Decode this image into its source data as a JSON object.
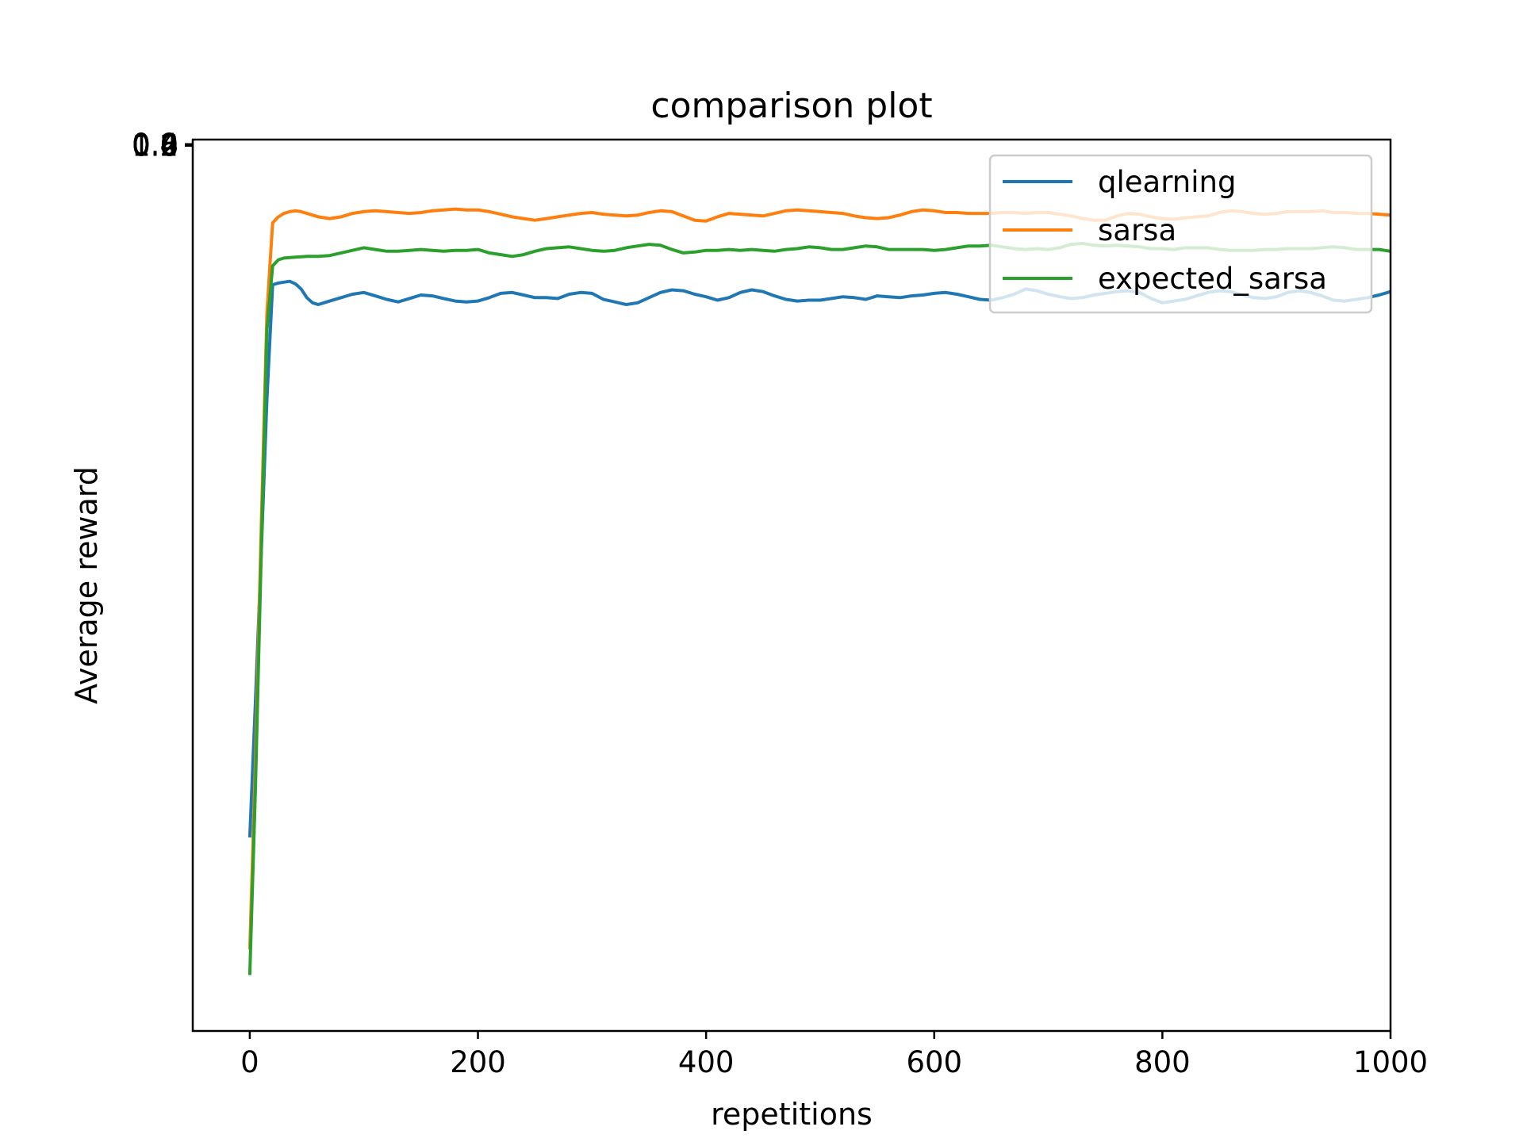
{
  "chart_data": {
    "type": "line",
    "title": "comparison plot",
    "xlabel": "repetitions",
    "ylabel": "Average reward",
    "xlim": [
      -50,
      1000
    ],
    "x_ticks": [
      0,
      200,
      400,
      600,
      800,
      1000
    ],
    "y_overlapping_tick_labels": [
      "0.0",
      "0.2",
      "0.4",
      "0.6",
      "0.8",
      "1.0"
    ],
    "ylim_px_note": "",
    "grid": false,
    "legend_position": "top-right",
    "series": [
      {
        "name": "qlearning",
        "color": "#1f77b4",
        "x": [
          0,
          5,
          10,
          15,
          20,
          25,
          30,
          35,
          40,
          45,
          50,
          55,
          60,
          65,
          70,
          80,
          90,
          100,
          110,
          120,
          130,
          140,
          150,
          160,
          170,
          180,
          190,
          200,
          210,
          220,
          230,
          240,
          250,
          260,
          270,
          280,
          290,
          300,
          310,
          320,
          330,
          340,
          350,
          360,
          370,
          380,
          390,
          400,
          410,
          420,
          430,
          440,
          450,
          460,
          470,
          480,
          490,
          500,
          510,
          520,
          530,
          540,
          550,
          560,
          570,
          580,
          590,
          600,
          610,
          620,
          630,
          640,
          650,
          660,
          670,
          680,
          690,
          700,
          710,
          720,
          730,
          740,
          750,
          760,
          770,
          780,
          790,
          800,
          810,
          820,
          830,
          840,
          850,
          860,
          870,
          880,
          890,
          900,
          910,
          920,
          930,
          940,
          950,
          960,
          970,
          980,
          990,
          1000
        ],
        "values": [
          0.19,
          0.35,
          0.52,
          0.7,
          0.833,
          0.835,
          0.836,
          0.837,
          0.834,
          0.828,
          0.818,
          0.812,
          0.81,
          0.812,
          0.814,
          0.818,
          0.822,
          0.824,
          0.82,
          0.816,
          0.813,
          0.817,
          0.821,
          0.82,
          0.817,
          0.814,
          0.813,
          0.814,
          0.818,
          0.823,
          0.824,
          0.821,
          0.818,
          0.818,
          0.817,
          0.822,
          0.824,
          0.823,
          0.816,
          0.813,
          0.81,
          0.812,
          0.818,
          0.824,
          0.827,
          0.826,
          0.822,
          0.819,
          0.815,
          0.818,
          0.824,
          0.827,
          0.825,
          0.82,
          0.816,
          0.814,
          0.815,
          0.815,
          0.817,
          0.819,
          0.818,
          0.816,
          0.82,
          0.819,
          0.818,
          0.82,
          0.821,
          0.823,
          0.824,
          0.822,
          0.819,
          0.816,
          0.815,
          0.818,
          0.822,
          0.828,
          0.826,
          0.822,
          0.819,
          0.817,
          0.818,
          0.821,
          0.823,
          0.825,
          0.826,
          0.824,
          0.817,
          0.812,
          0.814,
          0.816,
          0.82,
          0.824,
          0.826,
          0.825,
          0.821,
          0.818,
          0.817,
          0.819,
          0.824,
          0.826,
          0.824,
          0.82,
          0.815,
          0.814,
          0.816,
          0.818,
          0.821,
          0.825
        ]
      },
      {
        "name": "sarsa",
        "color": "#ff7f0e",
        "x": [
          0,
          5,
          10,
          15,
          20,
          25,
          30,
          35,
          40,
          45,
          50,
          55,
          60,
          70,
          80,
          90,
          100,
          110,
          120,
          130,
          140,
          150,
          160,
          170,
          180,
          190,
          200,
          210,
          220,
          230,
          240,
          250,
          260,
          270,
          280,
          290,
          300,
          310,
          320,
          330,
          340,
          350,
          360,
          370,
          380,
          390,
          400,
          410,
          420,
          430,
          440,
          450,
          460,
          470,
          480,
          490,
          500,
          510,
          520,
          530,
          540,
          550,
          560,
          570,
          580,
          590,
          600,
          610,
          620,
          630,
          640,
          650,
          660,
          670,
          680,
          690,
          700,
          710,
          720,
          730,
          740,
          750,
          760,
          770,
          780,
          790,
          800,
          810,
          820,
          830,
          840,
          850,
          860,
          870,
          880,
          890,
          900,
          910,
          920,
          930,
          940,
          950,
          960,
          970,
          980,
          990,
          1000
        ],
        "values": [
          0.06,
          0.28,
          0.55,
          0.8,
          0.905,
          0.912,
          0.916,
          0.918,
          0.919,
          0.918,
          0.916,
          0.914,
          0.912,
          0.91,
          0.912,
          0.916,
          0.918,
          0.919,
          0.918,
          0.917,
          0.916,
          0.917,
          0.919,
          0.92,
          0.921,
          0.92,
          0.92,
          0.918,
          0.915,
          0.912,
          0.91,
          0.908,
          0.91,
          0.912,
          0.914,
          0.916,
          0.917,
          0.915,
          0.914,
          0.913,
          0.914,
          0.917,
          0.919,
          0.918,
          0.913,
          0.908,
          0.907,
          0.912,
          0.916,
          0.915,
          0.914,
          0.913,
          0.916,
          0.919,
          0.92,
          0.919,
          0.918,
          0.917,
          0.916,
          0.913,
          0.911,
          0.91,
          0.911,
          0.914,
          0.918,
          0.92,
          0.919,
          0.917,
          0.917,
          0.916,
          0.916,
          0.916,
          0.917,
          0.917,
          0.916,
          0.917,
          0.917,
          0.915,
          0.913,
          0.91,
          0.908,
          0.908,
          0.913,
          0.916,
          0.915,
          0.912,
          0.91,
          0.909,
          0.911,
          0.912,
          0.913,
          0.917,
          0.919,
          0.918,
          0.916,
          0.915,
          0.916,
          0.918,
          0.918,
          0.918,
          0.919,
          0.917,
          0.917,
          0.916,
          0.916,
          0.915,
          0.914
        ]
      },
      {
        "name": "expected_sarsa",
        "color": "#2ca02c",
        "x": [
          0,
          5,
          10,
          15,
          20,
          25,
          30,
          40,
          50,
          60,
          70,
          80,
          90,
          100,
          110,
          120,
          130,
          140,
          150,
          160,
          170,
          180,
          190,
          200,
          210,
          220,
          230,
          240,
          250,
          260,
          270,
          280,
          290,
          300,
          310,
          320,
          330,
          340,
          350,
          360,
          370,
          380,
          390,
          400,
          410,
          420,
          430,
          440,
          450,
          460,
          470,
          480,
          490,
          500,
          510,
          520,
          530,
          540,
          550,
          560,
          570,
          580,
          590,
          600,
          610,
          620,
          630,
          640,
          650,
          660,
          670,
          680,
          690,
          700,
          710,
          720,
          730,
          740,
          750,
          760,
          770,
          780,
          790,
          800,
          810,
          820,
          830,
          840,
          850,
          860,
          870,
          880,
          890,
          900,
          910,
          920,
          930,
          940,
          950,
          960,
          970,
          980,
          990,
          1000
        ],
        "values": [
          0.03,
          0.25,
          0.52,
          0.78,
          0.855,
          0.862,
          0.864,
          0.865,
          0.866,
          0.866,
          0.867,
          0.87,
          0.873,
          0.876,
          0.874,
          0.872,
          0.872,
          0.873,
          0.874,
          0.873,
          0.872,
          0.873,
          0.873,
          0.874,
          0.87,
          0.868,
          0.866,
          0.868,
          0.872,
          0.875,
          0.876,
          0.877,
          0.875,
          0.873,
          0.872,
          0.873,
          0.876,
          0.878,
          0.88,
          0.879,
          0.874,
          0.87,
          0.871,
          0.873,
          0.873,
          0.874,
          0.873,
          0.874,
          0.873,
          0.872,
          0.874,
          0.875,
          0.877,
          0.876,
          0.874,
          0.874,
          0.876,
          0.878,
          0.877,
          0.874,
          0.874,
          0.874,
          0.874,
          0.873,
          0.874,
          0.876,
          0.878,
          0.878,
          0.879,
          0.877,
          0.875,
          0.874,
          0.875,
          0.874,
          0.876,
          0.88,
          0.881,
          0.879,
          0.878,
          0.879,
          0.878,
          0.877,
          0.875,
          0.875,
          0.874,
          0.876,
          0.876,
          0.876,
          0.874,
          0.873,
          0.873,
          0.873,
          0.874,
          0.874,
          0.875,
          0.875,
          0.875,
          0.876,
          0.877,
          0.876,
          0.874,
          0.874,
          0.874,
          0.872
        ]
      }
    ]
  }
}
